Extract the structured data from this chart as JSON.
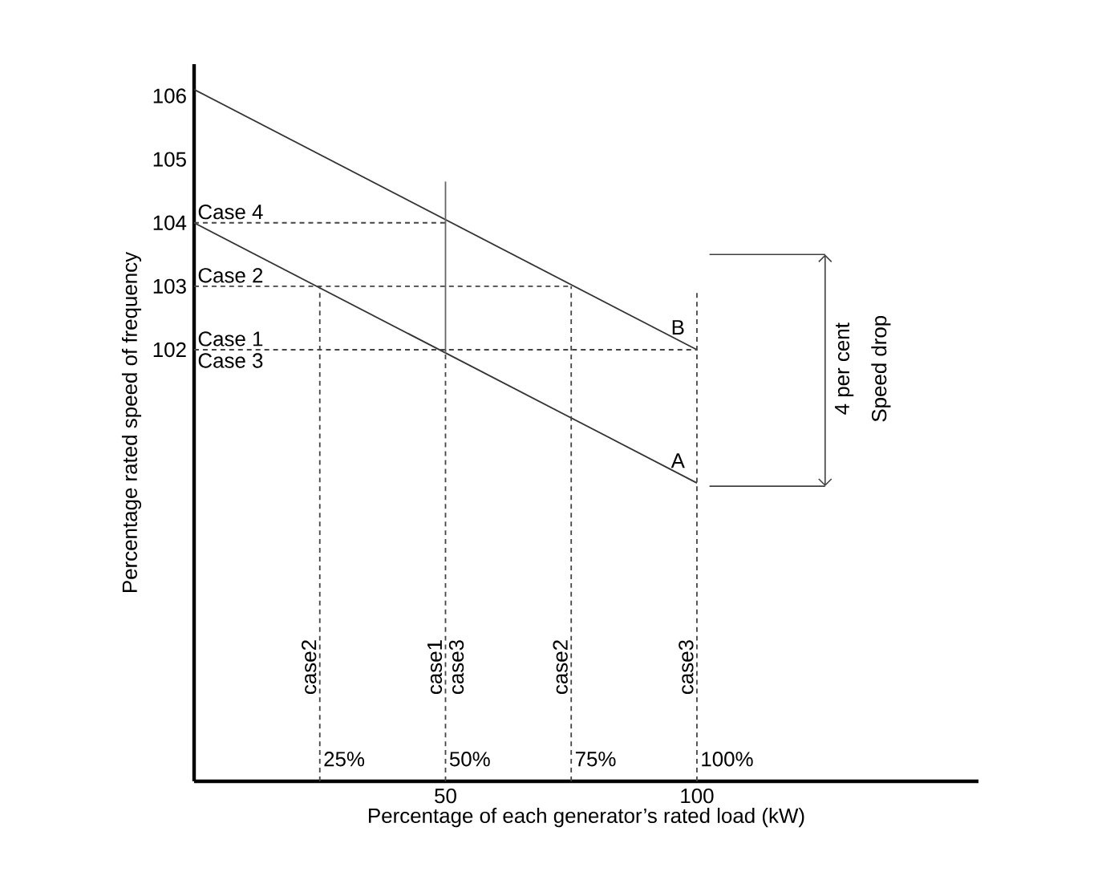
{
  "chart_data": {
    "type": "line",
    "xlabel": "Percentage of each generator’s rated load (kW)",
    "ylabel": "Percentage rated speed of frequency",
    "xlim": [
      0,
      156
    ],
    "ylim": [
      95.2,
      106.5
    ],
    "xticks": [
      50,
      100
    ],
    "yticks": [
      102,
      103,
      104,
      105,
      106
    ],
    "grid": false,
    "marker": "none",
    "series": [
      {
        "name": "B",
        "color": "#333333",
        "x": [
          0,
          100
        ],
        "values": [
          106.1,
          102
        ]
      },
      {
        "name": "A",
        "color": "#333333",
        "x": [
          0,
          100
        ],
        "values": [
          104,
          99.9
        ]
      },
      {
        "color": "#666666",
        "x": [
          50,
          50
        ],
        "values": [
          101.95,
          104.65
        ]
      },
      {
        "color": "#444444",
        "line_style": "dashed",
        "x": [
          0,
          50
        ],
        "values": [
          104,
          104
        ]
      },
      {
        "color": "#444444",
        "line_style": "dashed",
        "x": [
          0,
          75
        ],
        "values": [
          103,
          103
        ]
      },
      {
        "color": "#444444",
        "line_style": "dashed",
        "x": [
          0,
          100
        ],
        "values": [
          102,
          102
        ]
      },
      {
        "color": "#444444",
        "line_style": "dashed",
        "x": [
          25,
          25
        ],
        "values": [
          95.2,
          103
        ]
      },
      {
        "color": "#444444",
        "line_style": "dashed",
        "x": [
          50,
          50
        ],
        "values": [
          95.2,
          102
        ]
      },
      {
        "color": "#444444",
        "line_style": "dashed",
        "x": [
          75,
          75
        ],
        "values": [
          95.2,
          103
        ]
      },
      {
        "color": "#444444",
        "line_style": "dashed",
        "x": [
          100,
          100
        ],
        "values": [
          95.2,
          102.9
        ]
      }
    ],
    "annotations": [
      {
        "text": "Case 4",
        "x": 0,
        "y": 104
      },
      {
        "text": "Case 2",
        "x": 0,
        "y": 103
      },
      {
        "text": "Case 1",
        "x": 0,
        "y": 102
      },
      {
        "text": "Case 3",
        "x": 0,
        "y": 102
      },
      {
        "text": "case2",
        "x": 25,
        "y": 97
      },
      {
        "text": "case1",
        "x": 50,
        "y": 97
      },
      {
        "text": "case3",
        "x": 50,
        "y": 97
      },
      {
        "text": "case2",
        "x": 75,
        "y": 97
      },
      {
        "text": "case3",
        "x": 100,
        "y": 97
      },
      {
        "text": "25%",
        "x": 25,
        "y": 95.55
      },
      {
        "text": "50%",
        "x": 50,
        "y": 95.55
      },
      {
        "text": "75%",
        "x": 75,
        "y": 95.55
      },
      {
        "text": "100%",
        "x": 100,
        "y": 95.55
      },
      "4 per cent",
      "Speed drop"
    ]
  }
}
